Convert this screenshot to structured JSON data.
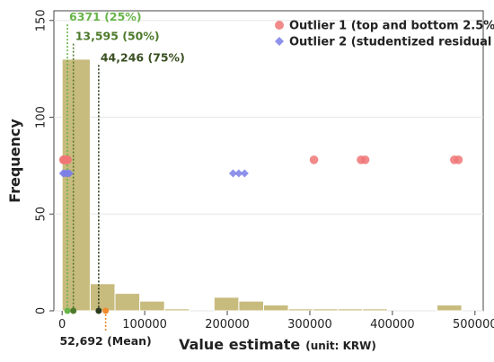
{
  "chart_data": {
    "type": "histogram",
    "xlabel": "Value estimate",
    "xlabel_unit": "(unit: KRW)",
    "ylabel": "Frequency",
    "xlim": [
      -10000,
      510000
    ],
    "ylim": [
      0,
      155
    ],
    "x_ticks": [
      0,
      100000,
      200000,
      300000,
      400000,
      500000
    ],
    "x_tick_labels": [
      "0",
      "100000",
      "200000",
      "300000",
      "400000",
      "500000"
    ],
    "y_ticks": [
      0,
      50,
      100,
      150
    ],
    "y_tick_labels": [
      "0",
      "50",
      "100",
      "150"
    ],
    "grid": "horizontal",
    "bar_color": "#c8bb7e",
    "bins": [
      {
        "x0": 0,
        "x1": 34000,
        "count": 130
      },
      {
        "x0": 34000,
        "x1": 64000,
        "count": 14
      },
      {
        "x0": 64000,
        "x1": 94000,
        "count": 9
      },
      {
        "x0": 94000,
        "x1": 124000,
        "count": 5
      },
      {
        "x0": 124000,
        "x1": 154000,
        "count": 1
      },
      {
        "x0": 154000,
        "x1": 184000,
        "count": 0
      },
      {
        "x0": 184000,
        "x1": 214000,
        "count": 7
      },
      {
        "x0": 214000,
        "x1": 244000,
        "count": 5
      },
      {
        "x0": 244000,
        "x1": 274000,
        "count": 3
      },
      {
        "x0": 274000,
        "x1": 304000,
        "count": 1
      },
      {
        "x0": 304000,
        "x1": 334000,
        "count": 1
      },
      {
        "x0": 334000,
        "x1": 364000,
        "count": 1
      },
      {
        "x0": 364000,
        "x1": 394000,
        "count": 1
      },
      {
        "x0": 394000,
        "x1": 424000,
        "count": 0
      },
      {
        "x0": 424000,
        "x1": 454000,
        "count": 0
      },
      {
        "x0": 454000,
        "x1": 484000,
        "count": 3
      }
    ],
    "series": [
      {
        "name": "Outlier 1 (top and bottom 2.5%)",
        "marker": "circle",
        "color": "#f07575",
        "y": 78,
        "x": [
          1500,
          2500,
          3500,
          4500,
          5500,
          6500,
          305000,
          362000,
          367000,
          475000,
          480000
        ]
      },
      {
        "name": "Outlier 2 (studentized residual ≥ 2)",
        "marker": "diamond",
        "color": "#7b7fe6",
        "y": 71,
        "x": [
          1000,
          3000,
          5000,
          7000,
          9000,
          207000,
          214000,
          221000
        ]
      }
    ],
    "reference_lines": [
      {
        "label": "6371 (25%)",
        "x": 6371,
        "color": "#67b44a",
        "text_color": "#67b44a",
        "label_y": 148
      },
      {
        "label": "13,595 (50%)",
        "x": 13595,
        "color": "#4e7a2c",
        "text_color": "#4e7a2c",
        "label_y": 138
      },
      {
        "label": "44,246 (75%)",
        "x": 44246,
        "color": "#2b3a1e",
        "text_color": "#3a4f22",
        "label_y": 127
      }
    ],
    "mean_marker": {
      "label": "52,692 (Mean)",
      "x": 52692,
      "color": "#f08a2c",
      "text_color": "#222222"
    }
  }
}
